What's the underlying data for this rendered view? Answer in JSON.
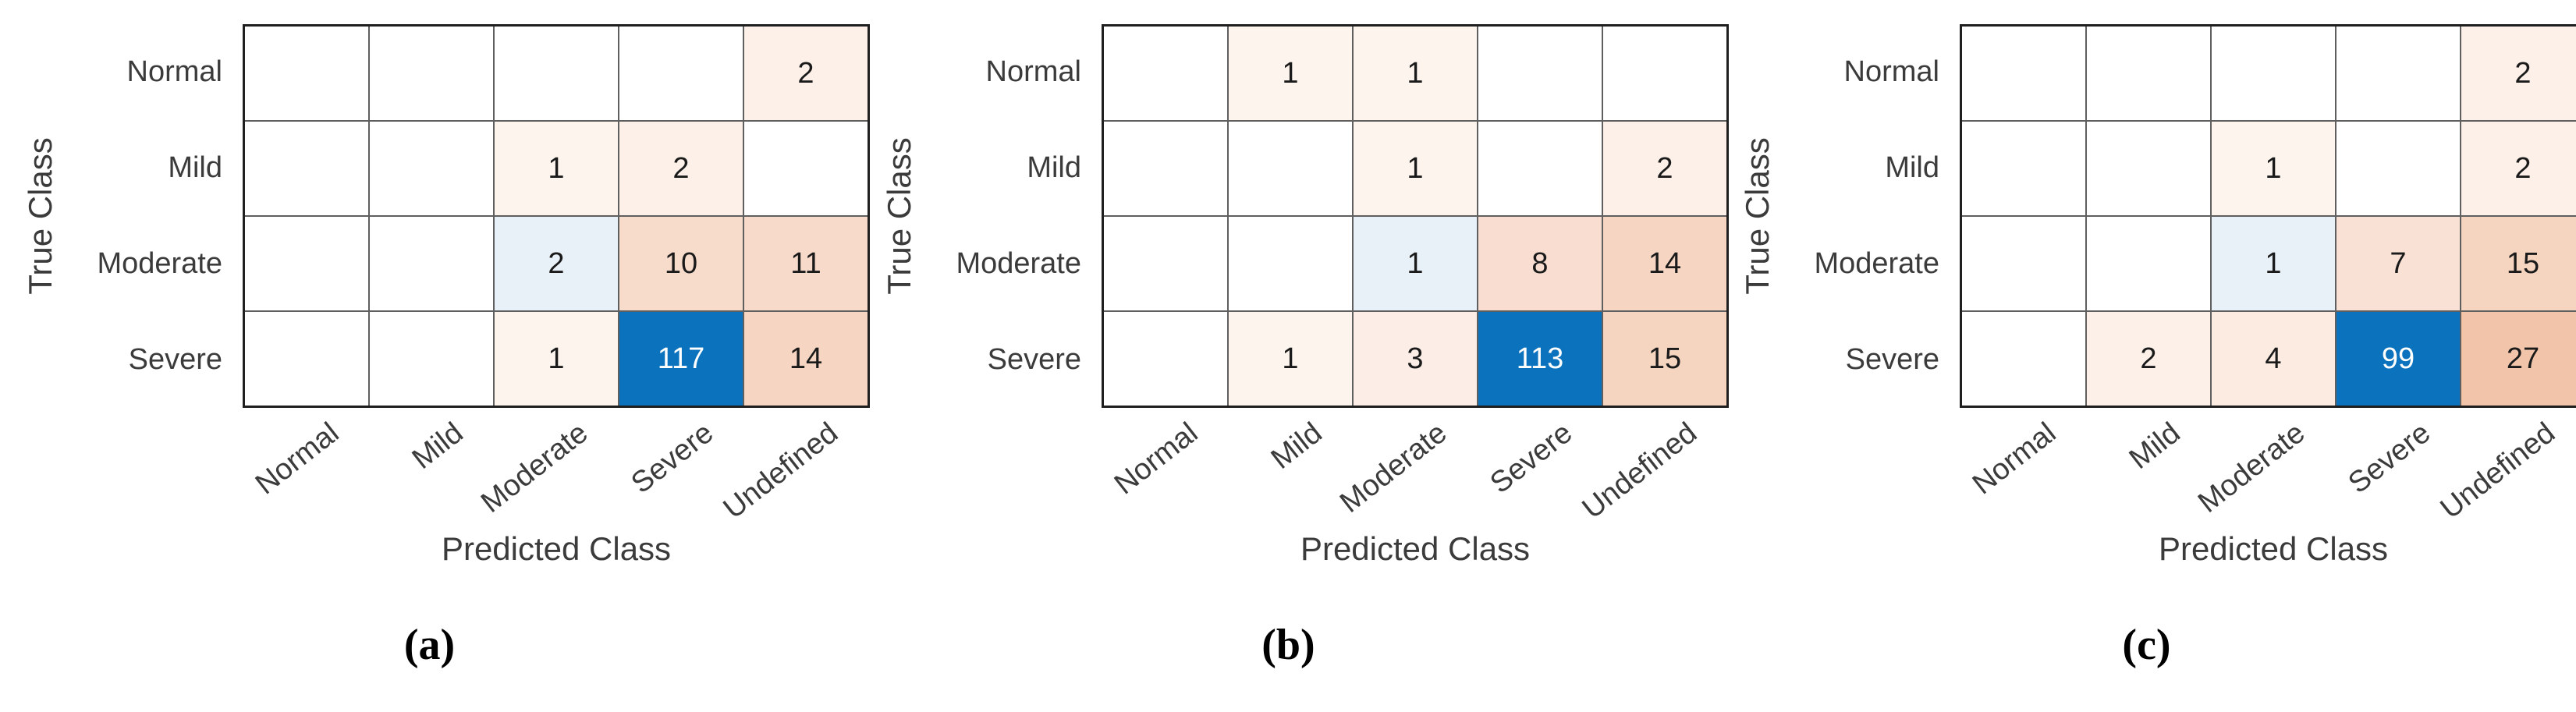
{
  "figure": {
    "background": "#ffffff",
    "accent_blue": "#0b72bd",
    "light_blue": "#e9f1f8",
    "grid_line_color": "#5f5f5f",
    "border_color": "#1f1f1f",
    "ylabel": "True Class",
    "xlabel": "Predicted Class",
    "row_labels": [
      "Normal",
      "Mild",
      "Moderate",
      "Severe"
    ],
    "col_labels": [
      "Normal",
      "Mild",
      "Moderate",
      "Severe",
      "Undefined"
    ],
    "panels": [
      {
        "caption": "(a)",
        "values": [
          [
            null,
            null,
            null,
            null,
            2
          ],
          [
            null,
            null,
            1,
            2,
            null
          ],
          [
            null,
            null,
            2,
            10,
            11
          ],
          [
            null,
            null,
            1,
            117,
            14
          ]
        ],
        "colors": [
          [
            null,
            null,
            null,
            null,
            "#fcf0e9"
          ],
          [
            null,
            null,
            "#fdf4ee",
            "#fcf0e9",
            null
          ],
          [
            null,
            null,
            "#e9f1f8",
            "#f8dccb",
            "#f7dac9"
          ],
          [
            null,
            null,
            "#fdf4ee",
            "#0b72bd",
            "#f6d6c2"
          ]
        ]
      },
      {
        "caption": "(b)",
        "values": [
          [
            null,
            1,
            1,
            null,
            null
          ],
          [
            null,
            null,
            1,
            null,
            2
          ],
          [
            null,
            null,
            1,
            8,
            14
          ],
          [
            null,
            1,
            3,
            113,
            15
          ]
        ],
        "colors": [
          [
            null,
            "#fdf4ee",
            "#fdf4ee",
            null,
            null
          ],
          [
            null,
            null,
            "#fdf4ee",
            null,
            "#fcf0e9"
          ],
          [
            null,
            null,
            "#e9f1f8",
            "#f8ddd0",
            "#f6d6c2"
          ],
          [
            null,
            "#fdf4ee",
            "#fceee6",
            "#0b72bd",
            "#f6d5c0"
          ]
        ]
      },
      {
        "caption": "(c)",
        "values": [
          [
            null,
            null,
            null,
            null,
            2
          ],
          [
            null,
            null,
            1,
            null,
            2
          ],
          [
            null,
            null,
            1,
            7,
            15
          ],
          [
            null,
            2,
            4,
            99,
            27
          ]
        ],
        "colors": [
          [
            null,
            null,
            null,
            null,
            "#fcf0e9"
          ],
          [
            null,
            null,
            "#fdf4ee",
            null,
            "#fcf0e9"
          ],
          [
            null,
            null,
            "#e9f1f8",
            "#f9e2d5",
            "#f6d5c0"
          ],
          [
            null,
            "#fcf0e9",
            "#fbebe1",
            "#0b72bd",
            "#f2c5aa"
          ]
        ]
      }
    ]
  },
  "chart_data": [
    {
      "type": "heatmap",
      "title": "(a)",
      "xlabel": "Predicted Class",
      "ylabel": "True Class",
      "x_categories": [
        "Normal",
        "Mild",
        "Moderate",
        "Severe",
        "Undefined"
      ],
      "y_categories": [
        "Normal",
        "Mild",
        "Moderate",
        "Severe"
      ],
      "matrix": [
        [
          null,
          null,
          null,
          null,
          2
        ],
        [
          null,
          null,
          1,
          2,
          null
        ],
        [
          null,
          null,
          2,
          10,
          11
        ],
        [
          null,
          null,
          1,
          117,
          14
        ]
      ],
      "legend_position": "none",
      "grid": true
    },
    {
      "type": "heatmap",
      "title": "(b)",
      "xlabel": "Predicted Class",
      "ylabel": "True Class",
      "x_categories": [
        "Normal",
        "Mild",
        "Moderate",
        "Severe",
        "Undefined"
      ],
      "y_categories": [
        "Normal",
        "Mild",
        "Moderate",
        "Severe"
      ],
      "matrix": [
        [
          null,
          1,
          1,
          null,
          null
        ],
        [
          null,
          null,
          1,
          null,
          2
        ],
        [
          null,
          null,
          1,
          8,
          14
        ],
        [
          null,
          1,
          3,
          113,
          15
        ]
      ],
      "legend_position": "none",
      "grid": true
    },
    {
      "type": "heatmap",
      "title": "(c)",
      "xlabel": "Predicted Class",
      "ylabel": "True Class",
      "x_categories": [
        "Normal",
        "Mild",
        "Moderate",
        "Severe",
        "Undefined"
      ],
      "y_categories": [
        "Normal",
        "Mild",
        "Moderate",
        "Severe"
      ],
      "matrix": [
        [
          null,
          null,
          null,
          null,
          2
        ],
        [
          null,
          null,
          1,
          null,
          2
        ],
        [
          null,
          null,
          1,
          7,
          15
        ],
        [
          null,
          2,
          4,
          99,
          27
        ]
      ],
      "legend_position": "none",
      "grid": true
    }
  ]
}
